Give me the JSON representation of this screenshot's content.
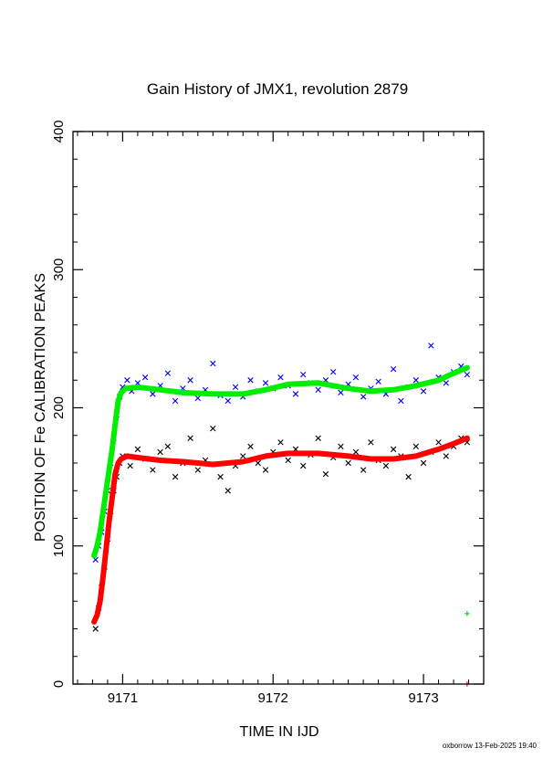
{
  "chart_data": {
    "type": "scatter",
    "title": "Gain History of JMX1, revolution 2879",
    "xlabel": "TIME IN IJD",
    "ylabel": "POSITION OF Fe CALIBRATION PEAKS",
    "xlim": [
      9170.67,
      9173.4
    ],
    "ylim": [
      0,
      400
    ],
    "xticks": [
      9171,
      9172,
      9173
    ],
    "yticks": [
      0,
      100,
      200,
      300,
      400
    ],
    "grid": false,
    "legend": "none",
    "series": [
      {
        "marker": "x",
        "color": "#0000ff",
        "points": [
          [
            9170.82,
            90
          ],
          [
            9170.84,
            100
          ],
          [
            9170.86,
            110
          ],
          [
            9170.88,
            125
          ],
          [
            9170.9,
            140
          ],
          [
            9170.92,
            160
          ],
          [
            9170.94,
            178
          ],
          [
            9170.96,
            195
          ],
          [
            9170.98,
            208
          ],
          [
            9171.0,
            215
          ],
          [
            9171.03,
            220
          ],
          [
            9171.06,
            212
          ],
          [
            9171.1,
            218
          ],
          [
            9171.15,
            222
          ],
          [
            9171.2,
            210
          ],
          [
            9171.25,
            216
          ],
          [
            9171.3,
            225
          ],
          [
            9171.35,
            205
          ],
          [
            9171.4,
            214
          ],
          [
            9171.45,
            220
          ],
          [
            9171.5,
            207
          ],
          [
            9171.55,
            213
          ],
          [
            9171.6,
            232
          ],
          [
            9171.65,
            209
          ],
          [
            9171.7,
            205
          ],
          [
            9171.75,
            215
          ],
          [
            9171.8,
            208
          ],
          [
            9171.85,
            220
          ],
          [
            9171.9,
            212
          ],
          [
            9171.95,
            218
          ],
          [
            9172.0,
            214
          ],
          [
            9172.05,
            222
          ],
          [
            9172.1,
            216
          ],
          [
            9172.15,
            210
          ],
          [
            9172.2,
            224
          ],
          [
            9172.25,
            218
          ],
          [
            9172.3,
            213
          ],
          [
            9172.35,
            220
          ],
          [
            9172.4,
            226
          ],
          [
            9172.45,
            211
          ],
          [
            9172.5,
            217
          ],
          [
            9172.55,
            222
          ],
          [
            9172.6,
            208
          ],
          [
            9172.65,
            214
          ],
          [
            9172.7,
            219
          ],
          [
            9172.75,
            210
          ],
          [
            9172.8,
            228
          ],
          [
            9172.85,
            205
          ],
          [
            9172.9,
            215
          ],
          [
            9172.95,
            220
          ],
          [
            9173.0,
            212
          ],
          [
            9173.05,
            245
          ],
          [
            9173.1,
            222
          ],
          [
            9173.15,
            218
          ],
          [
            9173.2,
            226
          ],
          [
            9173.25,
            230
          ],
          [
            9173.29,
            224
          ]
        ]
      },
      {
        "marker": "x",
        "color": "#000000",
        "points": [
          [
            9170.82,
            40
          ],
          [
            9170.84,
            55
          ],
          [
            9170.86,
            70
          ],
          [
            9170.88,
            85
          ],
          [
            9170.9,
            105
          ],
          [
            9170.92,
            125
          ],
          [
            9170.94,
            140
          ],
          [
            9170.96,
            150
          ],
          [
            9170.98,
            160
          ],
          [
            9171.0,
            165
          ],
          [
            9171.05,
            158
          ],
          [
            9171.1,
            170
          ],
          [
            9171.15,
            163
          ],
          [
            9171.2,
            155
          ],
          [
            9171.25,
            168
          ],
          [
            9171.3,
            172
          ],
          [
            9171.35,
            150
          ],
          [
            9171.4,
            160
          ],
          [
            9171.45,
            178
          ],
          [
            9171.5,
            155
          ],
          [
            9171.55,
            162
          ],
          [
            9171.6,
            185
          ],
          [
            9171.65,
            150
          ],
          [
            9171.7,
            140
          ],
          [
            9171.75,
            158
          ],
          [
            9171.8,
            165
          ],
          [
            9171.85,
            172
          ],
          [
            9171.9,
            160
          ],
          [
            9171.95,
            155
          ],
          [
            9172.0,
            168
          ],
          [
            9172.05,
            175
          ],
          [
            9172.1,
            162
          ],
          [
            9172.15,
            170
          ],
          [
            9172.2,
            158
          ],
          [
            9172.25,
            166
          ],
          [
            9172.3,
            178
          ],
          [
            9172.35,
            152
          ],
          [
            9172.4,
            164
          ],
          [
            9172.45,
            172
          ],
          [
            9172.5,
            160
          ],
          [
            9172.55,
            168
          ],
          [
            9172.6,
            155
          ],
          [
            9172.65,
            175
          ],
          [
            9172.7,
            162
          ],
          [
            9172.75,
            158
          ],
          [
            9172.8,
            170
          ],
          [
            9172.85,
            165
          ],
          [
            9172.9,
            150
          ],
          [
            9172.95,
            172
          ],
          [
            9173.0,
            160
          ],
          [
            9173.05,
            168
          ],
          [
            9173.1,
            175
          ],
          [
            9173.15,
            165
          ],
          [
            9173.2,
            172
          ],
          [
            9173.25,
            178
          ],
          [
            9173.29,
            175
          ]
        ]
      },
      {
        "marker": "line",
        "color": "#00ee00",
        "points": [
          [
            9170.81,
            93
          ],
          [
            9170.83,
            100
          ],
          [
            9170.85,
            110
          ],
          [
            9170.87,
            125
          ],
          [
            9170.89,
            140
          ],
          [
            9170.91,
            155
          ],
          [
            9170.93,
            170
          ],
          [
            9170.95,
            188
          ],
          [
            9170.97,
            205
          ],
          [
            9170.99,
            211
          ],
          [
            9171.02,
            214
          ],
          [
            9171.1,
            215
          ],
          [
            9171.25,
            213
          ],
          [
            9171.4,
            211
          ],
          [
            9171.6,
            210
          ],
          [
            9171.8,
            210
          ],
          [
            9171.95,
            213
          ],
          [
            9172.1,
            217
          ],
          [
            9172.3,
            218
          ],
          [
            9172.5,
            214
          ],
          [
            9172.65,
            212
          ],
          [
            9172.8,
            213
          ],
          [
            9172.95,
            216
          ],
          [
            9173.1,
            220
          ],
          [
            9173.2,
            225
          ],
          [
            9173.29,
            229
          ]
        ]
      },
      {
        "marker": "line",
        "color": "#ff0000",
        "points": [
          [
            9170.81,
            45
          ],
          [
            9170.83,
            50
          ],
          [
            9170.85,
            60
          ],
          [
            9170.87,
            78
          ],
          [
            9170.89,
            98
          ],
          [
            9170.91,
            118
          ],
          [
            9170.93,
            135
          ],
          [
            9170.95,
            152
          ],
          [
            9170.97,
            160
          ],
          [
            9170.99,
            163
          ],
          [
            9171.03,
            165
          ],
          [
            9171.1,
            164
          ],
          [
            9171.25,
            162
          ],
          [
            9171.4,
            161
          ],
          [
            9171.6,
            159
          ],
          [
            9171.8,
            161
          ],
          [
            9171.95,
            165
          ],
          [
            9172.1,
            167
          ],
          [
            9172.3,
            167
          ],
          [
            9172.5,
            165
          ],
          [
            9172.65,
            163
          ],
          [
            9172.8,
            163
          ],
          [
            9172.95,
            165
          ],
          [
            9173.1,
            170
          ],
          [
            9173.2,
            174
          ],
          [
            9173.29,
            178
          ]
        ]
      },
      {
        "marker": "+",
        "color": "#00cc00",
        "points": [
          [
            9173.29,
            51
          ]
        ]
      },
      {
        "marker": "+",
        "color": "#ff0000",
        "points": [
          [
            9173.29,
            0
          ]
        ]
      }
    ]
  },
  "footer": "oxborrow 13-Feb-2025 19:40"
}
